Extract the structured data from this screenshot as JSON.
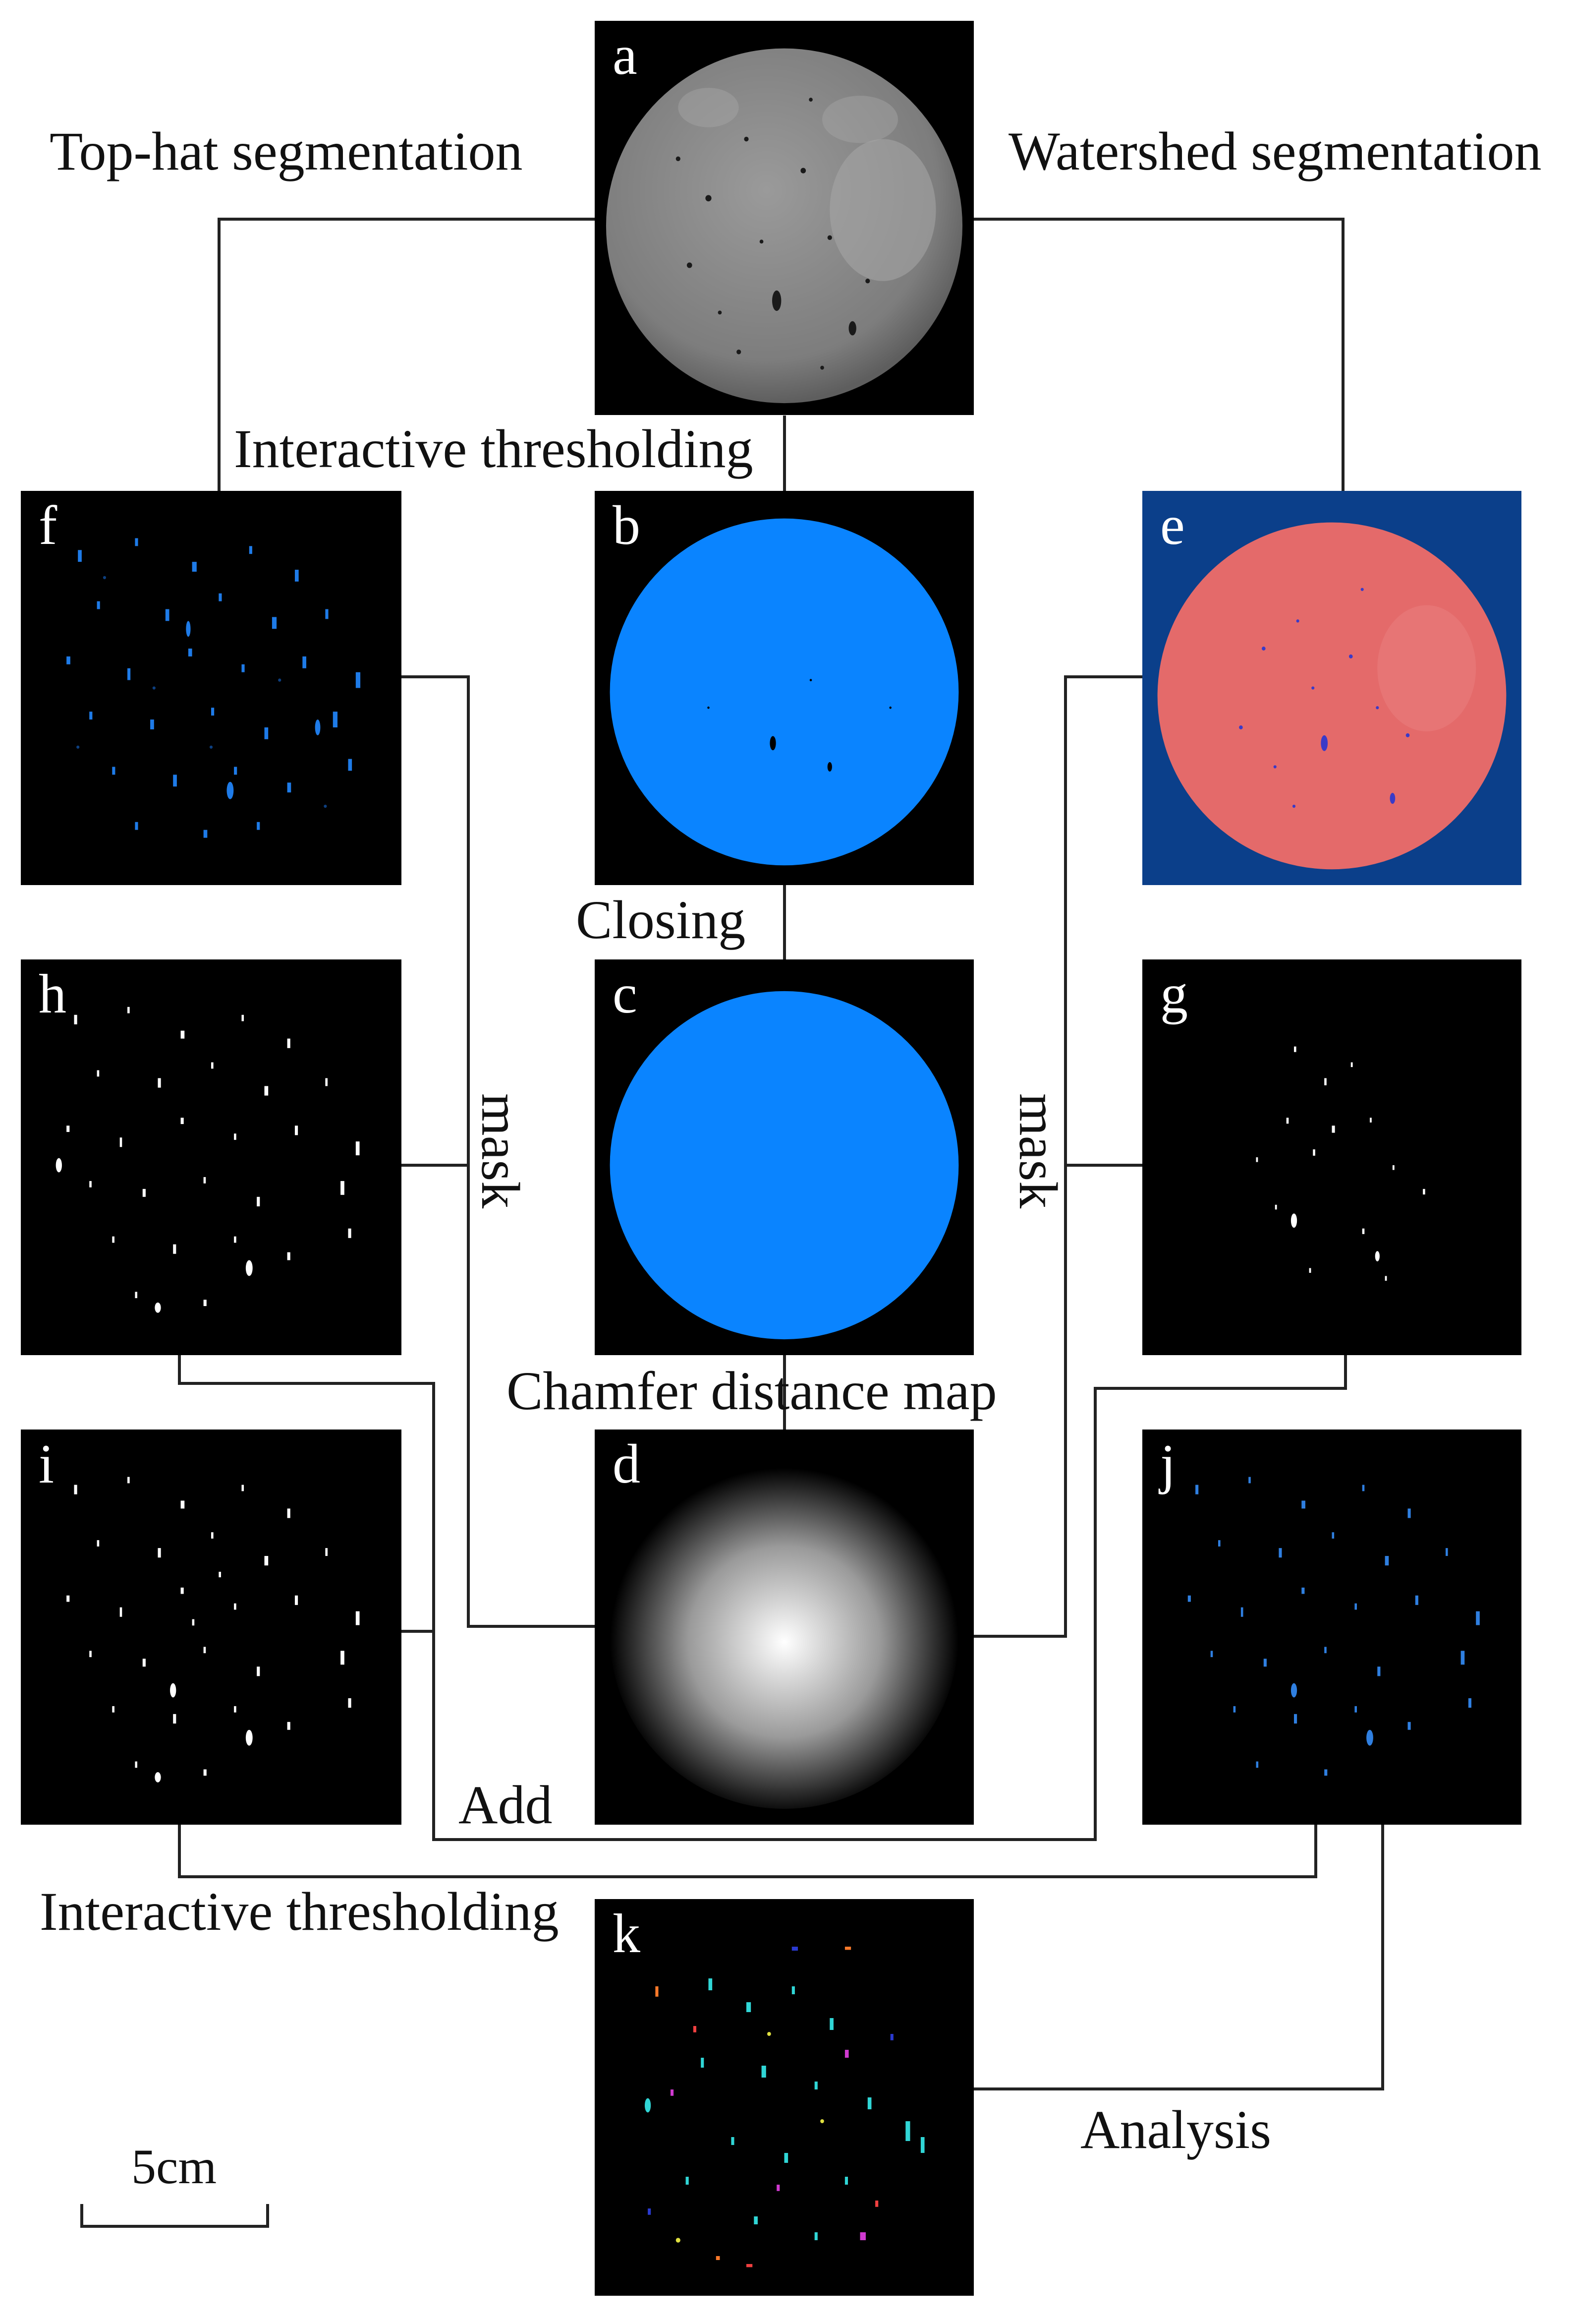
{
  "panels": {
    "a": {
      "letter": "a",
      "color": "#8a8a8a"
    },
    "b": {
      "letter": "b",
      "color": "#0a84ff"
    },
    "c": {
      "letter": "c",
      "color": "#0a84ff"
    },
    "d": {
      "letter": "d",
      "color": "#ffffff"
    },
    "e": {
      "letter": "e",
      "color": "#e46a6a",
      "background": "#0b3f8a"
    },
    "f": {
      "letter": "f",
      "color": "#1e7be8"
    },
    "g": {
      "letter": "g",
      "color": "#ffffff"
    },
    "h": {
      "letter": "h",
      "color": "#ffffff"
    },
    "i": {
      "letter": "i",
      "color": "#ffffff"
    },
    "j": {
      "letter": "j",
      "color": "#2f7fe0"
    },
    "k": {
      "letter": "k",
      "color": "#30d6d6"
    }
  },
  "labels": {
    "tophat": "Top-hat segmentation",
    "watershed": "Watershed segmentation",
    "interactive_top": "Interactive thresholding",
    "closing": "Closing",
    "mask_left": "mask",
    "mask_right": "mask",
    "chamfer": "Chamfer distance map",
    "add": "Add",
    "interactive_bottom": "Interactive thresholding",
    "analysis": "Analysis"
  },
  "scale_bar": {
    "label": "5cm"
  }
}
